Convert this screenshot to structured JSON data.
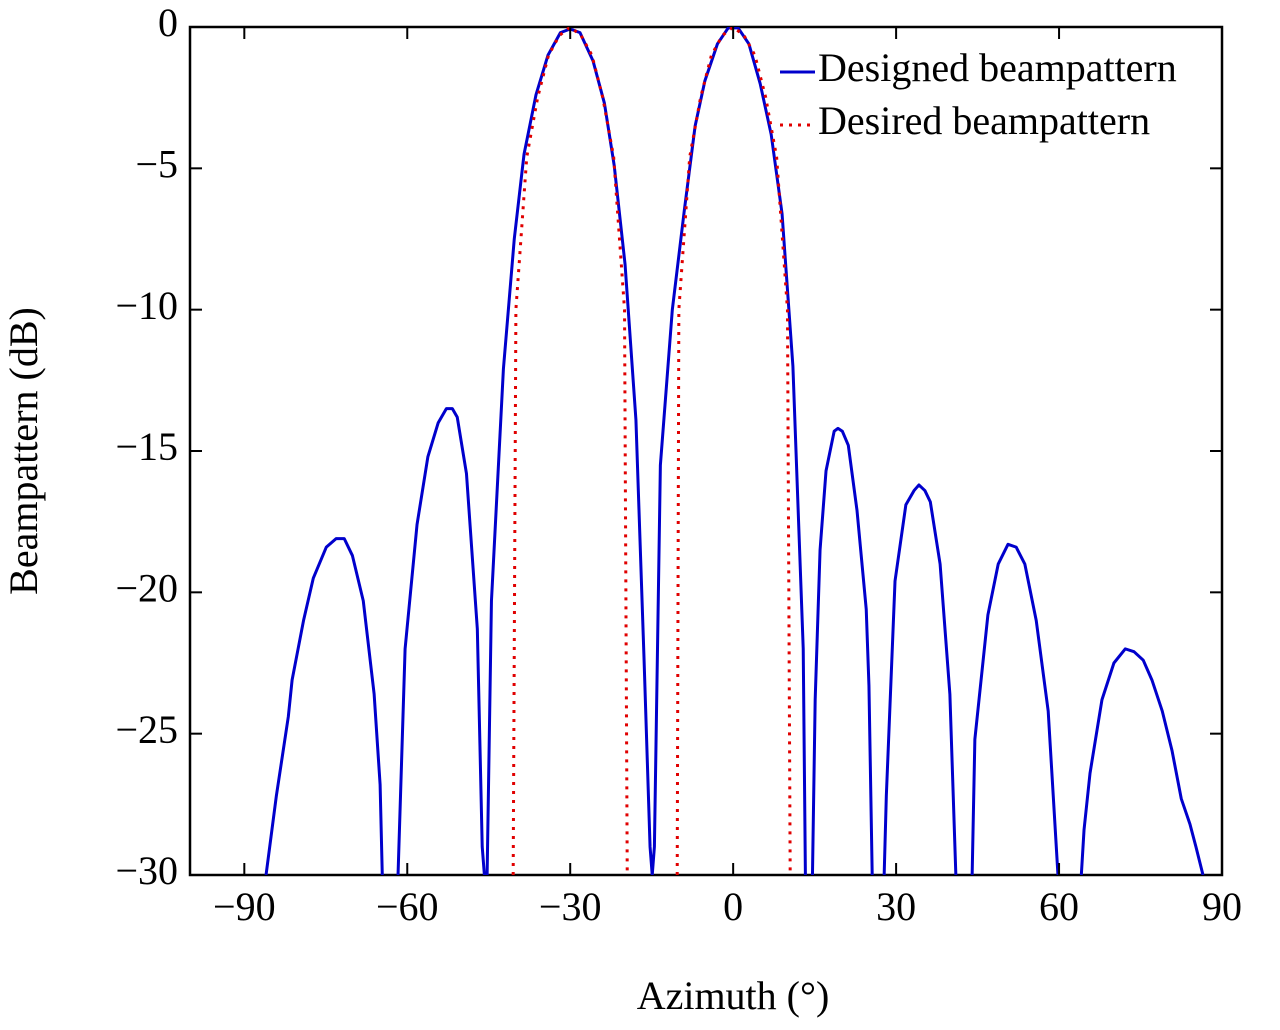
{
  "chart_data": {
    "type": "line",
    "xlabel": "Azimuth (°)",
    "ylabel": "Beampattern (dB)",
    "xlim": [
      -100,
      90
    ],
    "ylim": [
      -30,
      0
    ],
    "xticks": [
      {
        "value": -90,
        "label": "−90"
      },
      {
        "value": -60,
        "label": "−60"
      },
      {
        "value": -30,
        "label": "−30"
      },
      0,
      30,
      60,
      90
    ],
    "yticks": [
      0,
      {
        "value": -5,
        "label": "−5"
      },
      {
        "value": -10,
        "label": "−10"
      },
      {
        "value": -15,
        "label": "−15"
      },
      {
        "value": -20,
        "label": "−20"
      },
      {
        "value": -25,
        "label": "−25"
      },
      {
        "value": -30,
        "label": "−30"
      }
    ],
    "grid": false,
    "legend": "upper right",
    "series": [
      {
        "name": "Designed beampattern",
        "color": "#0000cc",
        "style": "solid",
        "x": [
          -86,
          -84.1,
          -83,
          -81.9,
          -81.2,
          -80.1,
          -79.1,
          -77.3,
          -74.9,
          -73.1,
          -71.6,
          -70.1,
          -68.1,
          -66.1,
          -65,
          -64.6,
          null,
          -61.7,
          -60.4,
          -58.2,
          -56.2,
          -54.3,
          -52.8,
          -51.7,
          -50.8,
          -49.1,
          -47.1,
          -46.2,
          -45.8,
          null,
          -45.3,
          -44.5,
          -42.3,
          -40.3,
          -38.5,
          -36.3,
          -34.1,
          -31.8,
          -30,
          -28.2,
          -25.8,
          -23.7,
          -21.9,
          -19.9,
          -17.9,
          -16.4,
          -15.3,
          -14.9,
          -14.5,
          -13.4,
          -11.2,
          -9,
          -7,
          -5.2,
          -2.9,
          -0.9,
          0.9,
          2.9,
          4.97,
          7,
          9,
          11,
          12.9,
          13.3,
          null,
          14.6,
          15.1,
          16,
          17.1,
          18.6,
          19.3,
          20.1,
          21.2,
          22.8,
          24.5,
          25,
          25.6,
          null,
          27.8,
          28.2,
          29.8,
          31.8,
          33.3,
          34.2,
          35.3,
          36.3,
          38.1,
          39.9,
          41,
          null,
          44,
          44.5,
          46.9,
          48.8,
          50.6,
          52.1,
          53.7,
          55.8,
          58,
          59.8,
          null,
          64.1,
          64.6,
          65.7,
          67.9,
          70.1,
          72.2,
          73.8,
          75.5,
          77.1,
          79,
          80.8,
          82.5,
          84.1,
          85.2,
          86.5
        ],
        "values": [
          -30,
          -27.2,
          -25.8,
          -24.4,
          -23.1,
          -22,
          -21,
          -19.5,
          -18.4,
          -18.1,
          -18.1,
          -18.7,
          -20.3,
          -23.6,
          -26.8,
          -30,
          null,
          -30,
          -22,
          -17.6,
          -15.2,
          -14,
          -13.5,
          -13.5,
          -13.8,
          -15.8,
          -21.3,
          -29,
          -30,
          null,
          -30,
          -20.3,
          -12.1,
          -7.5,
          -4.5,
          -2.4,
          -1,
          -0.2,
          -0.07,
          -0.2,
          -1.2,
          -2.7,
          -4.9,
          -8.4,
          -13.9,
          -22.4,
          -29,
          -30,
          -29,
          -15.5,
          -10,
          -6.5,
          -3.5,
          -1.9,
          -0.6,
          -0.03,
          -0.03,
          -0.6,
          -2,
          -3.8,
          -6.6,
          -12,
          -22,
          -30,
          null,
          -30,
          -23.8,
          -18.5,
          -15.7,
          -14.3,
          -14.2,
          -14.3,
          -14.8,
          -17.1,
          -20.6,
          -23.3,
          -30,
          null,
          -30,
          -27.2,
          -19.6,
          -16.9,
          -16.4,
          -16.2,
          -16.4,
          -16.8,
          -19,
          -23.6,
          -30,
          null,
          -30,
          -25.2,
          -20.8,
          -19,
          -18.3,
          -18.4,
          -19,
          -21,
          -24.2,
          -30,
          null,
          -30,
          -28.4,
          -26.4,
          -23.8,
          -22.5,
          -22,
          -22.1,
          -22.4,
          -23.1,
          -24.2,
          -25.6,
          -27.3,
          -28.2,
          -29,
          -30
        ]
      },
      {
        "name": "Desired beampattern",
        "color": "#e00000",
        "style": "dotted",
        "x": [
          -40.5,
          -40,
          -38,
          -36,
          -34,
          -32,
          -30,
          -28,
          -26,
          -24,
          -22,
          -20,
          -19.5,
          null,
          -10.3,
          -10,
          -8,
          -6,
          -4,
          -2,
          0,
          2,
          4,
          6,
          8,
          10,
          10.5
        ],
        "values": [
          -30,
          -10,
          -4.6,
          -2.5,
          -1,
          -0.3,
          0,
          -0.3,
          -1,
          -2.5,
          -4.6,
          -10,
          -30,
          null,
          -30,
          -10,
          -4.6,
          -2.5,
          -1,
          -0.3,
          0,
          -0.3,
          -1,
          -2.5,
          -4.6,
          -10,
          -30
        ]
      }
    ]
  }
}
